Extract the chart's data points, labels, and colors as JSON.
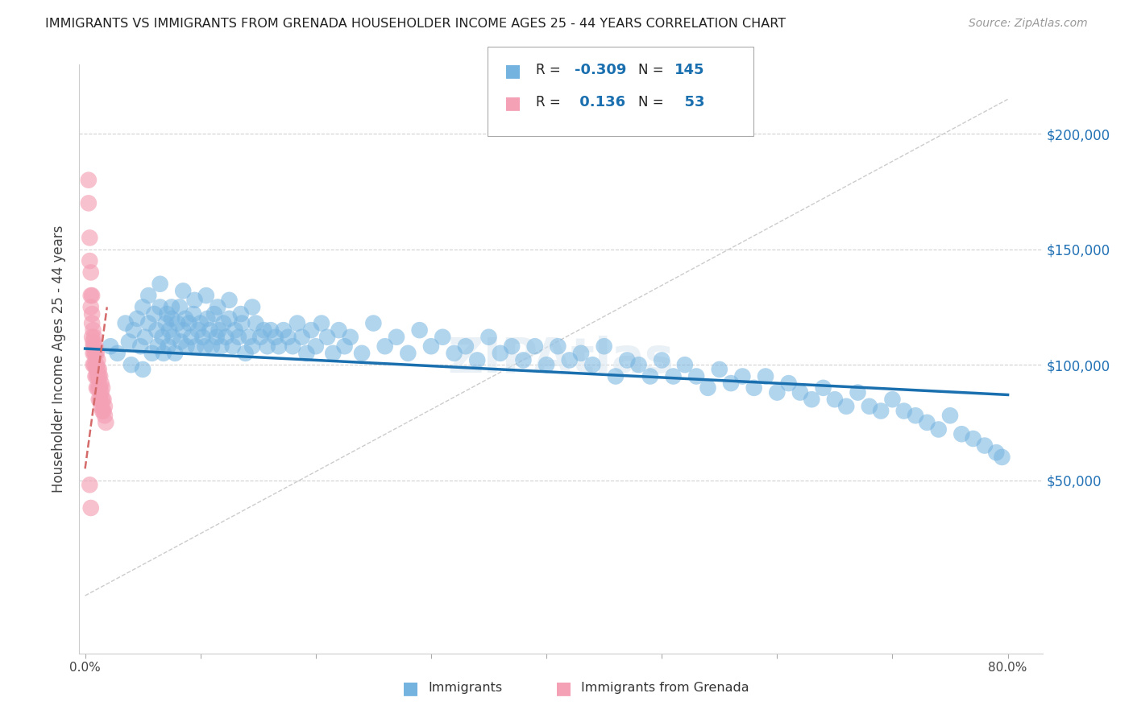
{
  "title": "IMMIGRANTS VS IMMIGRANTS FROM GRENADA HOUSEHOLDER INCOME AGES 25 - 44 YEARS CORRELATION CHART",
  "source_text": "Source: ZipAtlas.com",
  "ylabel": "Householder Income Ages 25 - 44 years",
  "xlim": [
    -0.005,
    0.83
  ],
  "ylim": [
    -25000,
    230000
  ],
  "blue_color": "#74b3e0",
  "pink_color": "#f4a0b5",
  "blue_line_color": "#1a6faf",
  "pink_line_color": "#d46a80",
  "legend_label_blue": "Immigrants",
  "legend_label_pink": "Immigrants from Grenada",
  "watermark": "ZIPAtlas",
  "blue_scatter_x": [
    0.022,
    0.028,
    0.035,
    0.038,
    0.04,
    0.042,
    0.045,
    0.048,
    0.05,
    0.05,
    0.052,
    0.055,
    0.058,
    0.06,
    0.062,
    0.063,
    0.065,
    0.067,
    0.068,
    0.07,
    0.071,
    0.072,
    0.073,
    0.075,
    0.076,
    0.078,
    0.08,
    0.082,
    0.083,
    0.085,
    0.087,
    0.088,
    0.09,
    0.092,
    0.094,
    0.096,
    0.098,
    0.1,
    0.102,
    0.104,
    0.106,
    0.108,
    0.11,
    0.112,
    0.114,
    0.116,
    0.118,
    0.12,
    0.122,
    0.125,
    0.128,
    0.13,
    0.133,
    0.136,
    0.139,
    0.142,
    0.145,
    0.148,
    0.152,
    0.155,
    0.158,
    0.161,
    0.165,
    0.168,
    0.172,
    0.176,
    0.18,
    0.184,
    0.188,
    0.192,
    0.196,
    0.2,
    0.205,
    0.21,
    0.215,
    0.22,
    0.225,
    0.23,
    0.24,
    0.25,
    0.26,
    0.27,
    0.28,
    0.29,
    0.3,
    0.31,
    0.32,
    0.33,
    0.34,
    0.35,
    0.36,
    0.37,
    0.38,
    0.39,
    0.4,
    0.41,
    0.42,
    0.43,
    0.44,
    0.45,
    0.46,
    0.47,
    0.48,
    0.49,
    0.5,
    0.51,
    0.52,
    0.53,
    0.54,
    0.55,
    0.56,
    0.57,
    0.58,
    0.59,
    0.6,
    0.61,
    0.62,
    0.63,
    0.64,
    0.65,
    0.66,
    0.67,
    0.68,
    0.69,
    0.7,
    0.71,
    0.72,
    0.73,
    0.74,
    0.75,
    0.76,
    0.77,
    0.78,
    0.79,
    0.795,
    0.055,
    0.065,
    0.075,
    0.085,
    0.095,
    0.105,
    0.115,
    0.125,
    0.135,
    0.145
  ],
  "blue_scatter_y": [
    108000,
    105000,
    118000,
    110000,
    100000,
    115000,
    120000,
    108000,
    125000,
    98000,
    112000,
    118000,
    105000,
    122000,
    115000,
    108000,
    125000,
    112000,
    105000,
    118000,
    122000,
    108000,
    115000,
    120000,
    112000,
    105000,
    118000,
    125000,
    110000,
    115000,
    120000,
    108000,
    118000,
    112000,
    122000,
    108000,
    115000,
    118000,
    112000,
    108000,
    120000,
    115000,
    108000,
    122000,
    112000,
    115000,
    108000,
    118000,
    112000,
    120000,
    108000,
    115000,
    112000,
    118000,
    105000,
    112000,
    108000,
    118000,
    112000,
    115000,
    108000,
    115000,
    112000,
    108000,
    115000,
    112000,
    108000,
    118000,
    112000,
    105000,
    115000,
    108000,
    118000,
    112000,
    105000,
    115000,
    108000,
    112000,
    105000,
    118000,
    108000,
    112000,
    105000,
    115000,
    108000,
    112000,
    105000,
    108000,
    102000,
    112000,
    105000,
    108000,
    102000,
    108000,
    100000,
    108000,
    102000,
    105000,
    100000,
    108000,
    95000,
    102000,
    100000,
    95000,
    102000,
    95000,
    100000,
    95000,
    90000,
    98000,
    92000,
    95000,
    90000,
    95000,
    88000,
    92000,
    88000,
    85000,
    90000,
    85000,
    82000,
    88000,
    82000,
    80000,
    85000,
    80000,
    78000,
    75000,
    72000,
    78000,
    70000,
    68000,
    65000,
    62000,
    60000,
    130000,
    135000,
    125000,
    132000,
    128000,
    130000,
    125000,
    128000,
    122000,
    125000
  ],
  "pink_scatter_x": [
    0.003,
    0.004,
    0.004,
    0.005,
    0.005,
    0.005,
    0.006,
    0.006,
    0.006,
    0.006,
    0.007,
    0.007,
    0.007,
    0.007,
    0.007,
    0.008,
    0.008,
    0.008,
    0.008,
    0.009,
    0.009,
    0.009,
    0.009,
    0.01,
    0.01,
    0.01,
    0.01,
    0.01,
    0.011,
    0.011,
    0.011,
    0.011,
    0.012,
    0.012,
    0.012,
    0.012,
    0.013,
    0.013,
    0.013,
    0.014,
    0.014,
    0.014,
    0.015,
    0.015,
    0.015,
    0.016,
    0.016,
    0.017,
    0.017,
    0.018,
    0.003,
    0.004,
    0.005
  ],
  "pink_scatter_y": [
    170000,
    155000,
    145000,
    140000,
    130000,
    125000,
    130000,
    122000,
    118000,
    112000,
    115000,
    110000,
    108000,
    105000,
    100000,
    112000,
    108000,
    105000,
    100000,
    108000,
    105000,
    100000,
    95000,
    105000,
    100000,
    98000,
    95000,
    90000,
    102000,
    98000,
    95000,
    90000,
    98000,
    95000,
    90000,
    85000,
    95000,
    90000,
    85000,
    92000,
    88000,
    82000,
    90000,
    85000,
    80000,
    85000,
    80000,
    82000,
    78000,
    75000,
    180000,
    48000,
    38000
  ],
  "blue_line_x": [
    0.0,
    0.8
  ],
  "blue_line_y": [
    107000,
    87000
  ],
  "pink_line_x": [
    0.0,
    0.019
  ],
  "pink_line_y": [
    55000,
    125000
  ],
  "diag_line_x": [
    0.0,
    0.8
  ],
  "diag_line_y": [
    0,
    215000
  ]
}
